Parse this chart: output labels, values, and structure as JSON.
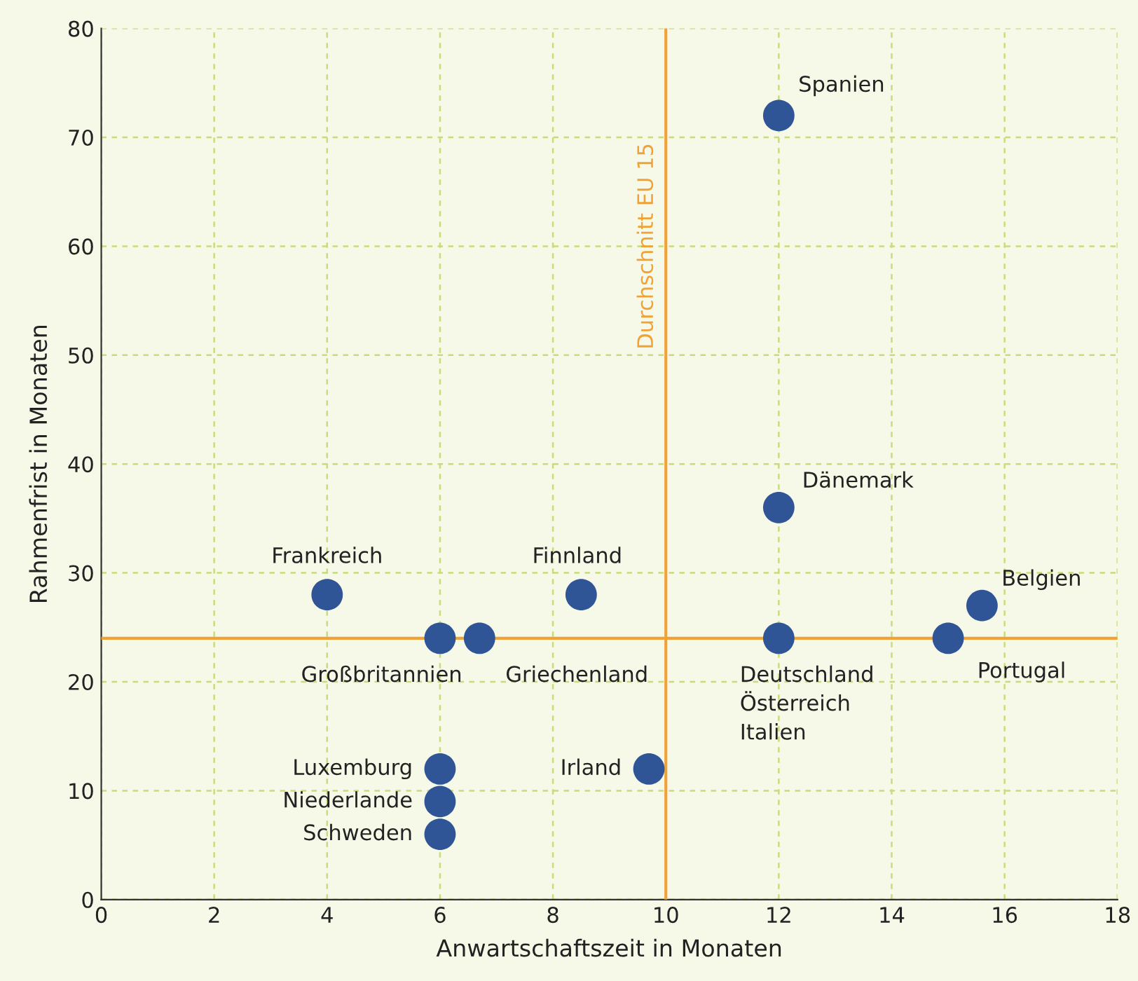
{
  "chart_data": {
    "type": "scatter",
    "xlabel": "Anwartschaftszeit in Monaten",
    "ylabel": "Rahmenfrist in Monaten",
    "x": [
      12,
      12,
      4,
      8.5,
      15.6,
      6,
      6.7,
      12,
      15,
      6,
      6,
      6,
      9.7
    ],
    "values": [
      72,
      36,
      28,
      28,
      27,
      24,
      24,
      24,
      24,
      12,
      9,
      6,
      12
    ],
    "color": "#2f5597",
    "marker": "circle",
    "xlim": [
      0,
      18
    ],
    "xticks": [
      0,
      2,
      4,
      6,
      8,
      10,
      12,
      14,
      16,
      18
    ],
    "ylim": [
      0,
      80
    ],
    "yticks": [
      0,
      10,
      20,
      30,
      40,
      50,
      60,
      70,
      80
    ],
    "grid": true,
    "ref_lines": [
      {
        "axis": "x",
        "value": 10,
        "label": "Durchschnitt EU 15",
        "color": "#f0a236"
      },
      {
        "axis": "y",
        "value": 24,
        "color": "#f0a236"
      }
    ],
    "annotations": [
      {
        "text": "Spanien",
        "x": 12,
        "y": 72
      },
      {
        "text": "Dänemark",
        "x": 12,
        "y": 36
      },
      {
        "text": "Frankreich",
        "x": 4,
        "y": 28
      },
      {
        "text": "Finnland",
        "x": 8.5,
        "y": 28
      },
      {
        "text": "Belgien",
        "x": 15.6,
        "y": 27
      },
      {
        "text": "Großbritannien",
        "x": 6,
        "y": 24
      },
      {
        "text": "Griechenland",
        "x": 6.7,
        "y": 24
      },
      {
        "text": "Deutschland\nÖsterreich\nItalien",
        "x": 12,
        "y": 24
      },
      {
        "text": "Portugal",
        "x": 15,
        "y": 24
      },
      {
        "text": "Luxemburg",
        "x": 6,
        "y": 12
      },
      {
        "text": "Niederlande",
        "x": 6,
        "y": 9
      },
      {
        "text": "Schweden",
        "x": 6,
        "y": 6
      },
      {
        "text": "Irland",
        "x": 9.7,
        "y": 12
      }
    ]
  }
}
